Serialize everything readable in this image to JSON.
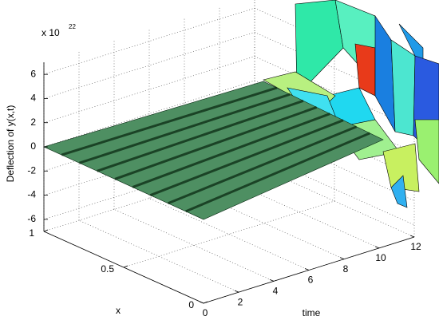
{
  "chart_data": {
    "type": "surface",
    "zlabel": "Deflection of y(x,t)",
    "xlabel": "x",
    "ylabel": "time",
    "exponent_label": "x 10",
    "exponent": "22",
    "xlim": [
      0,
      1
    ],
    "xticks": [
      0,
      0.5,
      1
    ],
    "ylim": [
      0,
      12
    ],
    "yticks": [
      0,
      2,
      4,
      6,
      8,
      10,
      12
    ],
    "zlim": [
      -7,
      7
    ],
    "zticks": [
      -6,
      -4,
      -2,
      0,
      2,
      4,
      6
    ],
    "grid": true
  }
}
